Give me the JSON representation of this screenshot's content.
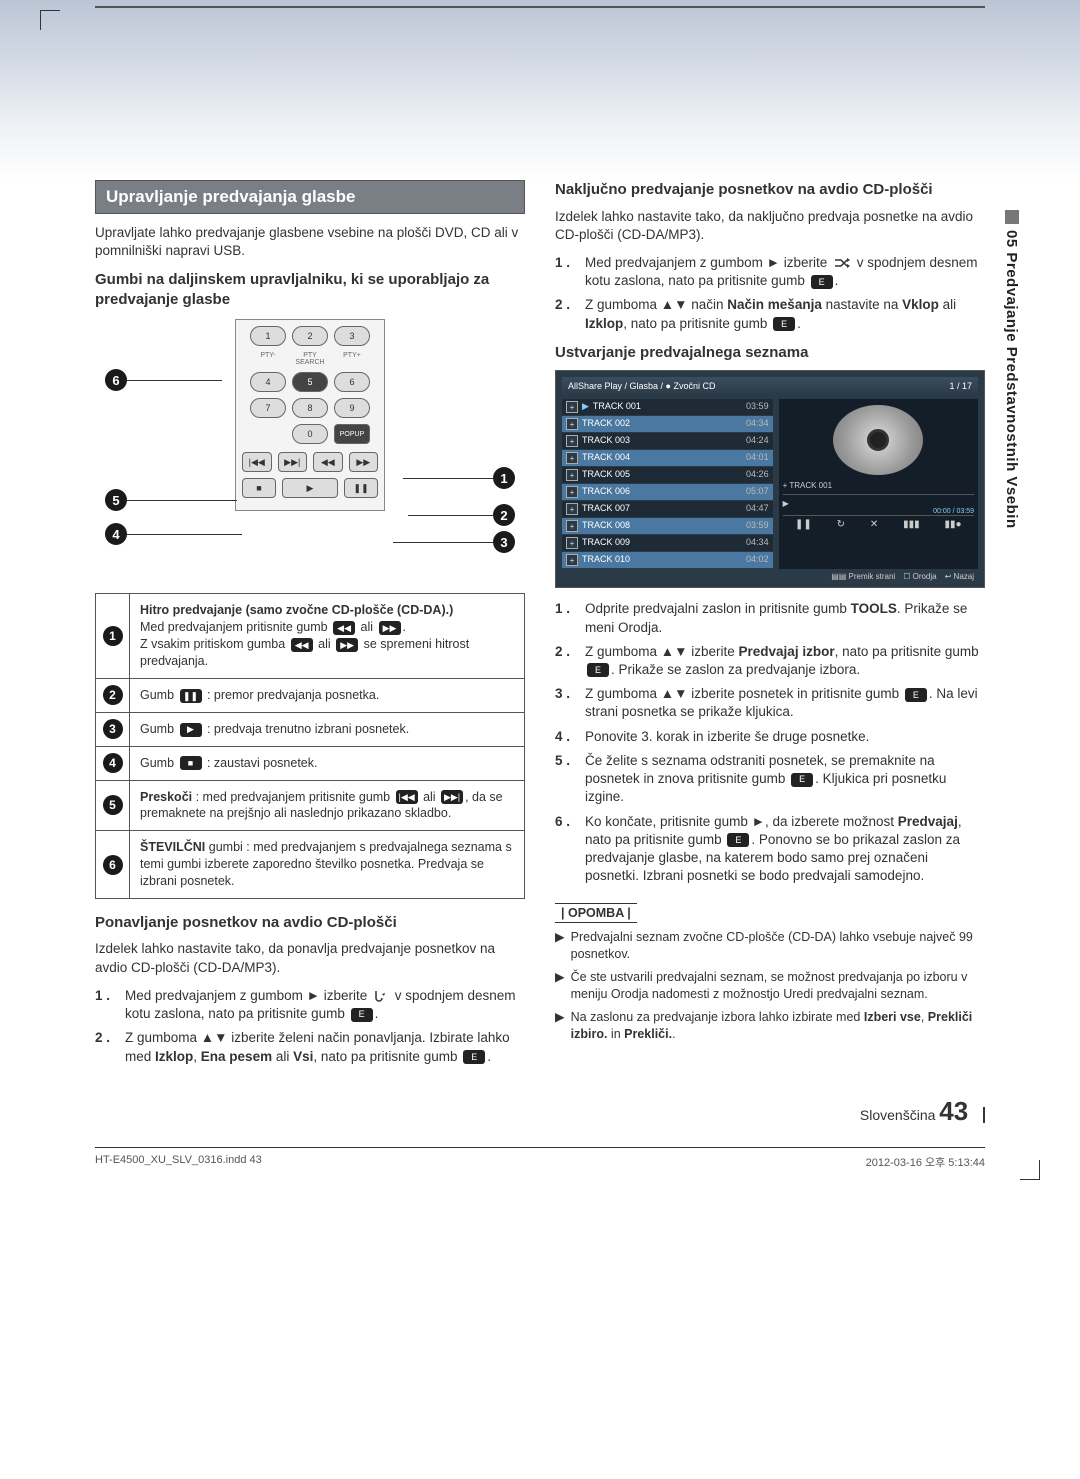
{
  "sideTab": "05  Predvajanje Predstavnostnih Vsebin",
  "left": {
    "titleBar": "Upravljanje predvajanja glasbe",
    "intro": "Upravljate lahko predvajanje glasbene vsebine na plošči DVD, CD ali v pomnilniški napravi USB.",
    "sub1": "Gumbi na daljinskem upravljalniku, ki se uporabljajo za predvajanje glasbe",
    "remote": {
      "labels": {
        "pty_minus": "PTY-",
        "pty_search": "PTY SEARCH",
        "pty_plus": "PTY+",
        "popup": "POPUP"
      },
      "nums": [
        "1",
        "2",
        "3",
        "4",
        "5",
        "6",
        "7",
        "8",
        "9",
        "0"
      ],
      "callouts": [
        "1",
        "2",
        "3",
        "4",
        "5",
        "6"
      ]
    },
    "table": [
      {
        "n": "1",
        "html": "<b>Hitro predvajanje (samo zvočne CD-plošče (CD-DA).)</b><br>Med predvajanjem pritisnite gumb <span class='btn-icon'>◀◀</span> ali <span class='btn-icon'>▶▶</span>.<br>Z vsakim pritiskom gumba <span class='btn-icon'>◀◀</span> ali <span class='btn-icon'>▶▶</span> se spremeni hitrost predvajanja."
      },
      {
        "n": "2",
        "html": "Gumb <span class='btn-icon'>❚❚</span> : premor predvajanja posnetka."
      },
      {
        "n": "3",
        "html": "Gumb <span class='btn-icon'>▶</span> : predvaja trenutno izbrani posnetek."
      },
      {
        "n": "4",
        "html": "Gumb <span class='btn-icon'>■</span> : zaustavi posnetek."
      },
      {
        "n": "5",
        "html": "<b>Preskoči</b> : med predvajanjem pritisnite gumb <span class='btn-icon'>|◀◀</span> ali <span class='btn-icon'>▶▶|</span>, da se premaknete na prejšnjo ali naslednjo prikazano skladbo."
      },
      {
        "n": "6",
        "html": "<b>ŠTEVILČNI</b> gumbi : med predvajanjem s predvajalnega seznama s temi gumbi izberete zaporedno številko posnetka. Predvaja se izbrani posnetek."
      }
    ],
    "sub2": "Ponavljanje posnetkov na avdio CD-plošči",
    "p2": "Izdelek lahko nastavite tako, da ponavlja predvajanje posnetkov na avdio CD-plošči (CD-DA/MP3).",
    "steps2": [
      "Med predvajanjem z gumbom ► izberite <svg class='inline-icon' width='16' height='14'><path d='M3 2 v7 a3 3 0 0 0 6 0' fill='none' stroke='#333' stroke-width='1.5'/><path d='M9 5 l3 -1 l-1 3 z' fill='#333'/></svg> v spodnjem desnem kotu zaslona, nato pa pritisnite gumb <span class='btn-icon'>E</span>.",
      "Z gumboma ▲▼ izberite želeni način ponavljanja. Izbirate lahko med <b>Izklop</b>, <b>Ena pesem</b> ali <b>Vsi</b>, nato pa pritisnite gumb <span class='btn-icon'>E</span>."
    ]
  },
  "right": {
    "sub1": "Naključno predvajanje posnetkov na avdio CD-plošči",
    "p1": "Izdelek lahko nastavite tako, da naključno predvaja posnetke na avdio CD-plošči (CD-DA/MP3).",
    "steps1": [
      "Med predvajanjem z gumbom ► izberite <svg class='inline-icon' width='18' height='14'><path d='M2 4 h6 l6 6 M2 10 h6 l6 -6' stroke='#333' stroke-width='1.5' fill='none'/><path d='M14 2 l3 2 l-3 2 z M14 8 l3 2 l-3 2 z' fill='#333'/></svg> v spodnjem desnem kotu zaslona, nato pa pritisnite gumb <span class='btn-icon'>E</span>.",
      "Z gumboma ▲▼ način <b>Način mešanja</b> nastavite na <b>Vklop</b> ali <b>Izklop</b>, nato pa pritisnite gumb <span class='btn-icon'>E</span>."
    ],
    "sub2": "Ustvarjanje predvajalnega seznama",
    "player": {
      "breadcrumb": "AllShare Play / Glasba /  ● Zvočni CD",
      "counter": "1 / 17",
      "tracks": [
        {
          "name": "TRACK 001",
          "time": "03:59",
          "sel": false,
          "play": true
        },
        {
          "name": "TRACK 002",
          "time": "04:34",
          "sel": true
        },
        {
          "name": "TRACK 003",
          "time": "04:24",
          "sel": false
        },
        {
          "name": "TRACK 004",
          "time": "04:01",
          "sel": true
        },
        {
          "name": "TRACK 005",
          "time": "04:26",
          "sel": false
        },
        {
          "name": "TRACK 006",
          "time": "05:07",
          "sel": true
        },
        {
          "name": "TRACK 007",
          "time": "04:47",
          "sel": false
        },
        {
          "name": "TRACK 008",
          "time": "03:59",
          "sel": true
        },
        {
          "name": "TRACK 009",
          "time": "04:34",
          "sel": false
        },
        {
          "name": "TRACK 010",
          "time": "04:02",
          "sel": true
        }
      ],
      "now": "+ TRACK 001",
      "time": "00:00 / 03:59",
      "footer": [
        "▤▤ Premik strani",
        "☐ Orodja",
        "↩ Nazaj"
      ]
    },
    "steps2": [
      "Odprite predvajalni zaslon in pritisnite gumb <b>TOOLS</b>. Prikaže se meni Orodja.",
      "Z gumboma ▲▼ izberite <b>Predvajaj izbor</b>, nato pa pritisnite gumb <span class='btn-icon'>E</span>. Prikaže se zaslon za predvajanje izbora.",
      "Z gumboma ▲▼ izberite posnetek in pritisnite gumb <span class='btn-icon'>E</span>. Na levi strani posnetka se prikaže kljukica.",
      "Ponovite 3. korak in izberite še druge posnetke.",
      "Če želite s seznama odstraniti posnetek, se premaknite na posnetek in znova pritisnite gumb <span class='btn-icon'>E</span>. Kljukica pri posnetku izgine.",
      "Ko končate, pritisnite gumb ►, da izberete možnost <b>Predvajaj</b>, nato pa pritisnite gumb <span class='btn-icon'>E</span>. Ponovno se bo prikazal zaslon za predvajanje glasbe, na katerem bodo samo prej označeni posnetki. Izbrani posnetki se bodo predvajali samodejno."
    ],
    "noteLabel": "| OPOMBA |",
    "notes": [
      "Predvajalni seznam zvočne CD-plošče (CD-DA) lahko vsebuje največ 99 posnetkov.",
      "Če ste ustvarili predvajalni seznam, se možnost predvajanja po izboru v meniju Orodja  nadomesti z možnostjo Uredi predvajalni seznam.",
      "Na zaslonu za predvajanje izbora lahko izbirate med <b>Izberi vse</b>, <b>Prekliči izbiro.</b> in <b>Prekliči.</b>."
    ]
  },
  "footer": {
    "lang": "Slovenščina",
    "pageNum": "43",
    "fileLine": "HT-E4500_XU_SLV_0316.indd   43",
    "dateLine": "2012-03-16   오후 5:13:44"
  }
}
